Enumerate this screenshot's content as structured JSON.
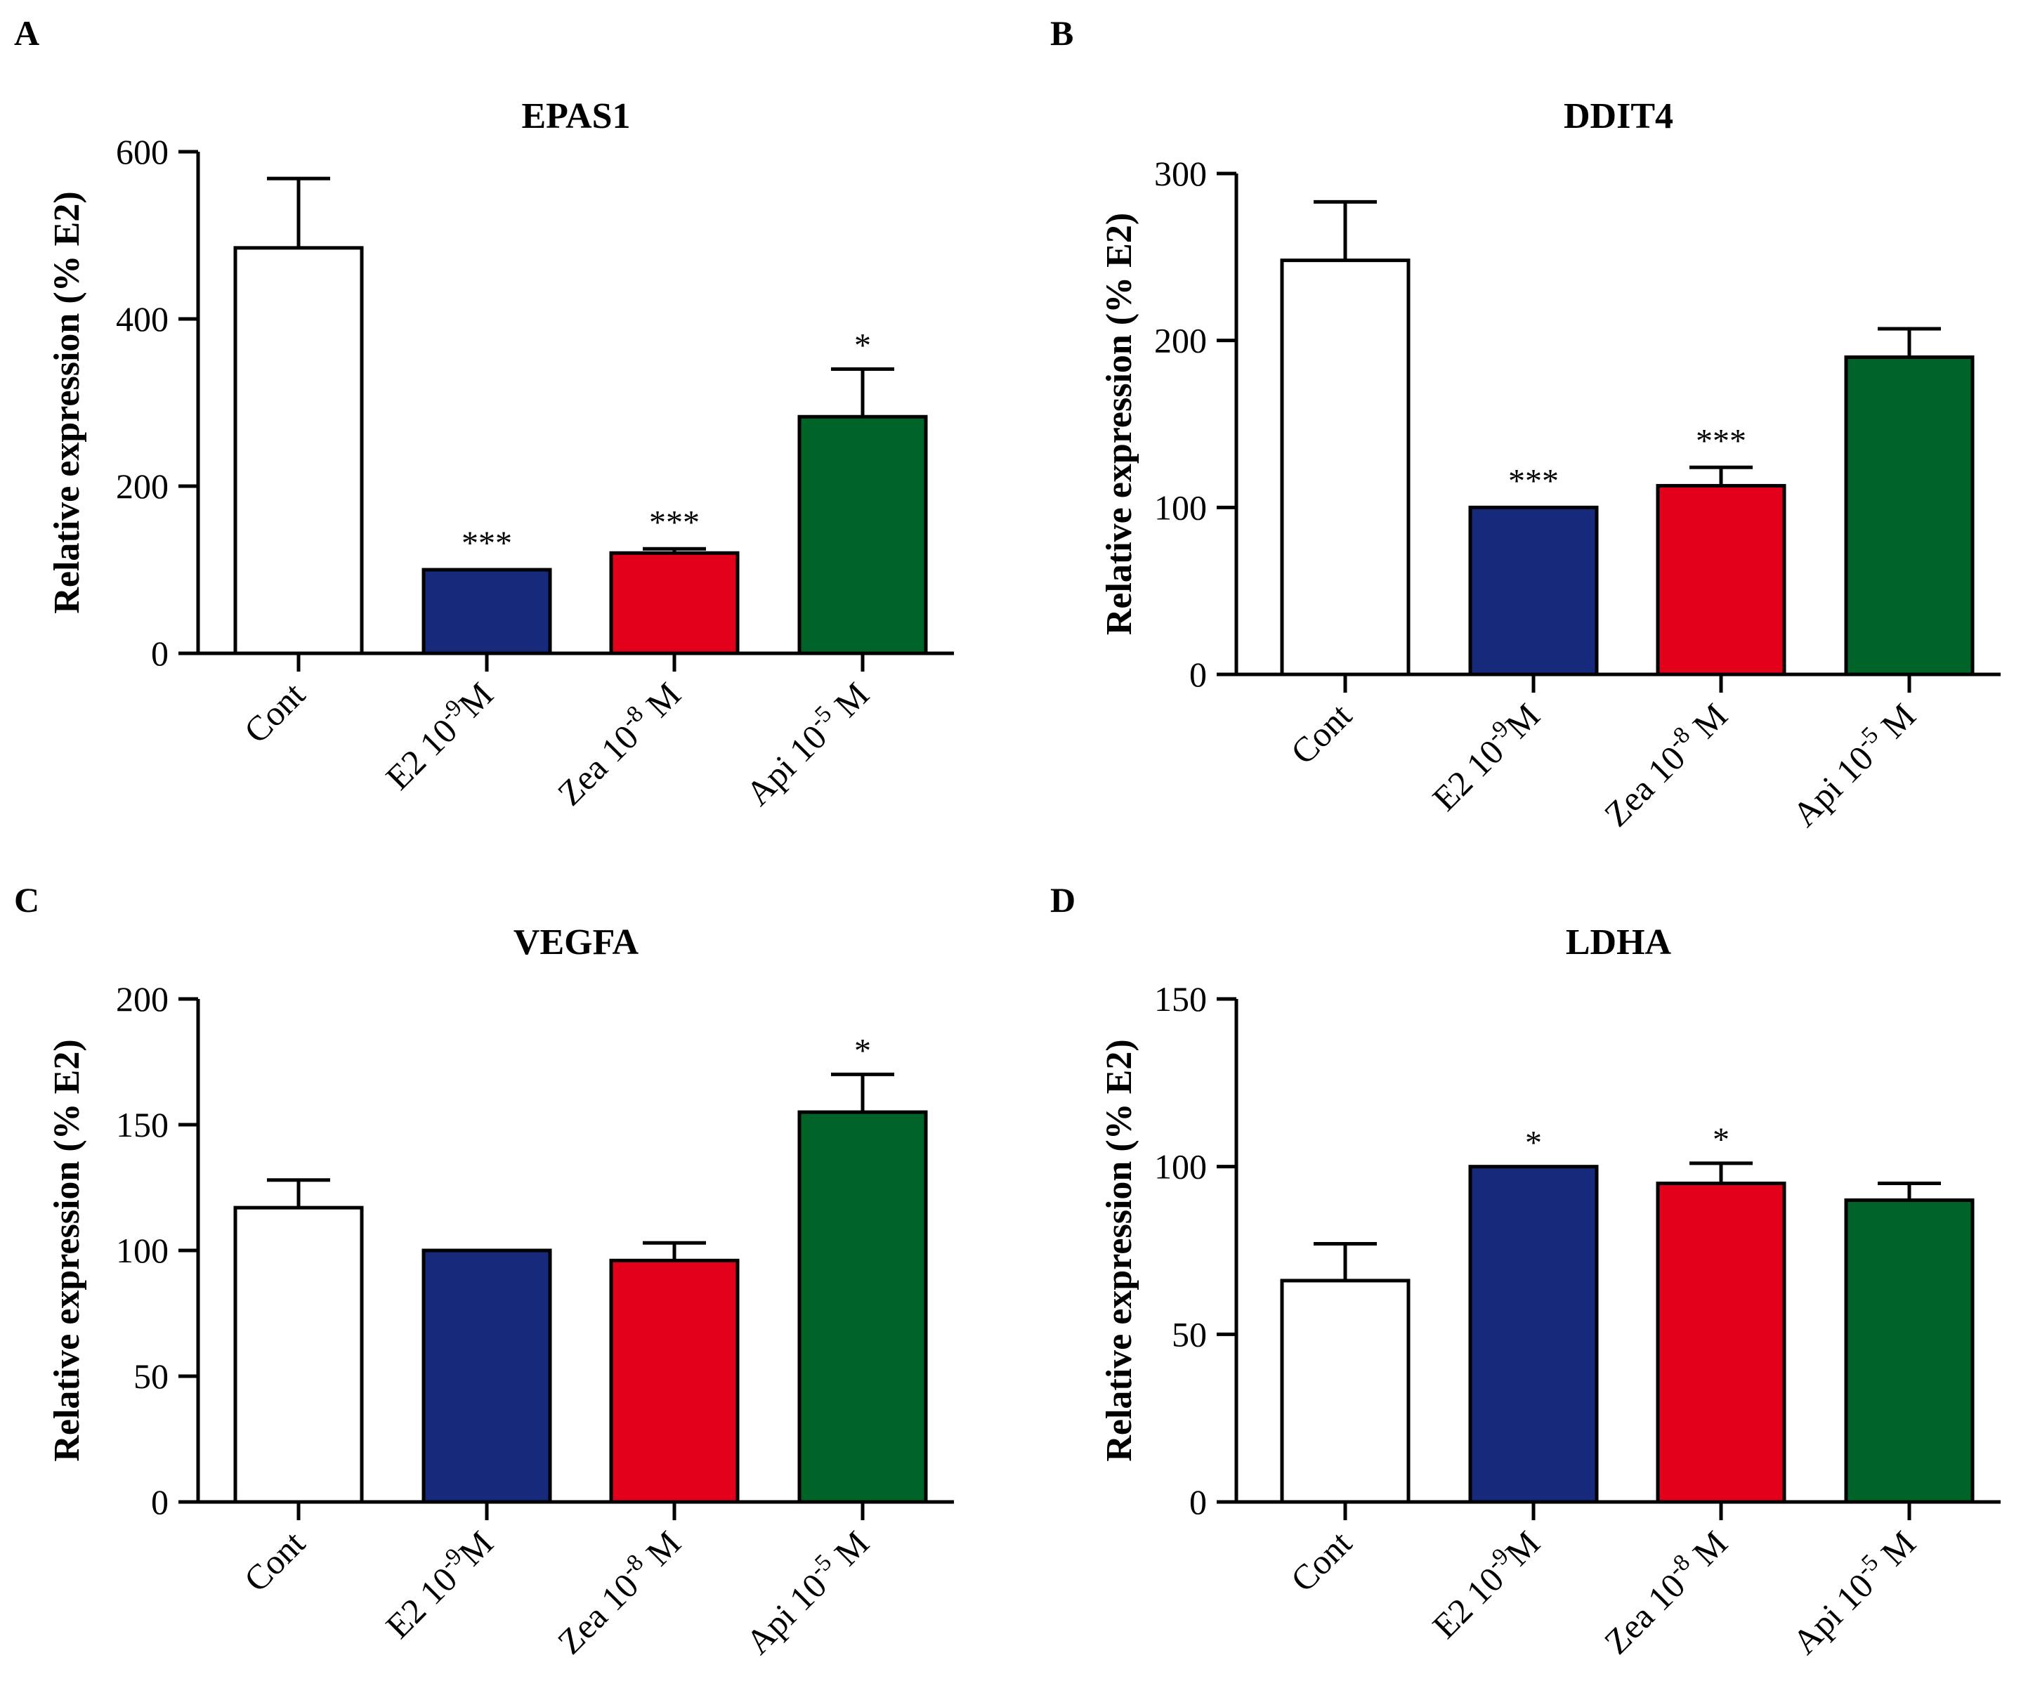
{
  "chart_data": [
    {
      "type": "bar",
      "panel": "A",
      "title": "EPAS1",
      "xlabel": "",
      "ylabel": "Relative expression (% E2)",
      "ylim": [
        0,
        600
      ],
      "yticks": [
        0,
        200,
        400,
        600
      ],
      "categories": [
        {
          "base": "Cont",
          "exp": "",
          "unit": ""
        },
        {
          "base": "E2 10",
          "exp": "-9",
          "unit": "M"
        },
        {
          "base": "Zea 10",
          "exp": "-8",
          "unit": " M"
        },
        {
          "base": "Api 10",
          "exp": "-5",
          "unit": " M"
        }
      ],
      "values": [
        485,
        100,
        120,
        283
      ],
      "errors": [
        83,
        0,
        5,
        57
      ],
      "significance": [
        "",
        "***",
        "***",
        "*"
      ],
      "colors": [
        "#ffffff",
        "#17297a",
        "#e3001b",
        "#006428"
      ]
    },
    {
      "type": "bar",
      "panel": "B",
      "title": "DDIT4",
      "xlabel": "",
      "ylabel": "Relative expression (% E2)",
      "ylim": [
        0,
        300
      ],
      "yticks": [
        0,
        100,
        200,
        300
      ],
      "categories": [
        {
          "base": "Cont",
          "exp": "",
          "unit": ""
        },
        {
          "base": "E2 10",
          "exp": "-9",
          "unit": "M"
        },
        {
          "base": "Zea 10",
          "exp": "-8",
          "unit": " M"
        },
        {
          "base": "Api 10",
          "exp": "-5",
          "unit": " M"
        }
      ],
      "values": [
        248,
        100,
        113,
        190
      ],
      "errors": [
        35,
        0,
        11,
        17
      ],
      "significance": [
        "",
        "***",
        "***",
        ""
      ],
      "colors": [
        "#ffffff",
        "#17297a",
        "#e3001b",
        "#006428"
      ]
    },
    {
      "type": "bar",
      "panel": "C",
      "title": "VEGFA",
      "xlabel": "",
      "ylabel": "Relative expression (% E2)",
      "ylim": [
        0,
        200
      ],
      "yticks": [
        0,
        50,
        100,
        150,
        200
      ],
      "categories": [
        {
          "base": "Cont",
          "exp": "",
          "unit": ""
        },
        {
          "base": "E2 10",
          "exp": "-9",
          "unit": "M"
        },
        {
          "base": "Zea 10",
          "exp": "-8",
          "unit": " M"
        },
        {
          "base": "Api 10",
          "exp": "-5",
          "unit": " M"
        }
      ],
      "values": [
        117,
        100,
        96,
        155
      ],
      "errors": [
        11,
        0,
        7,
        15
      ],
      "significance": [
        "",
        "",
        "",
        "*"
      ],
      "colors": [
        "#ffffff",
        "#17297a",
        "#e3001b",
        "#006428"
      ]
    },
    {
      "type": "bar",
      "panel": "D",
      "title": "LDHA",
      "xlabel": "",
      "ylabel": "Relative expression (% E2)",
      "ylim": [
        0,
        150
      ],
      "yticks": [
        0,
        50,
        100,
        150
      ],
      "categories": [
        {
          "base": "Cont",
          "exp": "",
          "unit": ""
        },
        {
          "base": "E2 10",
          "exp": "-9",
          "unit": "M"
        },
        {
          "base": "Zea 10",
          "exp": "-8",
          "unit": " M"
        },
        {
          "base": "Api 10",
          "exp": "-5",
          "unit": " M"
        }
      ],
      "values": [
        66,
        100,
        95,
        90
      ],
      "errors": [
        11,
        0,
        6,
        5
      ],
      "significance": [
        "",
        "*",
        "*",
        ""
      ],
      "colors": [
        "#ffffff",
        "#17297a",
        "#e3001b",
        "#006428"
      ]
    }
  ]
}
